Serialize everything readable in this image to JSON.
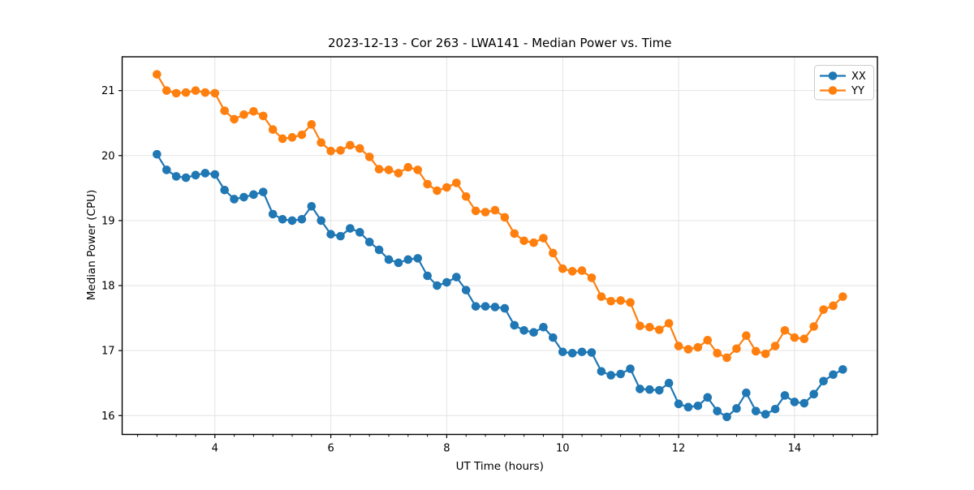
{
  "chart_data": {
    "type": "line",
    "title": "2023-12-13 - Cor 263 - LWA141 - Median Power vs. Time",
    "xlabel": "UT Time (hours)",
    "ylabel": "Median Power (CPU)",
    "xlim": [
      2.4,
      15.43
    ],
    "ylim": [
      15.71,
      21.52
    ],
    "x_major_ticks": [
      4,
      6,
      8,
      10,
      12,
      14
    ],
    "x_minor_step": 0.3333,
    "y_major_ticks": [
      16,
      17,
      18,
      19,
      20,
      21
    ],
    "grid": true,
    "legend_position": "upper right",
    "x": [
      3.0,
      3.167,
      3.333,
      3.5,
      3.667,
      3.833,
      4.0,
      4.167,
      4.333,
      4.5,
      4.667,
      4.833,
      5.0,
      5.167,
      5.333,
      5.5,
      5.667,
      5.833,
      6.0,
      6.167,
      6.333,
      6.5,
      6.667,
      6.833,
      7.0,
      7.167,
      7.333,
      7.5,
      7.667,
      7.833,
      8.0,
      8.167,
      8.333,
      8.5,
      8.667,
      8.833,
      9.0,
      9.167,
      9.333,
      9.5,
      9.667,
      9.833,
      10.0,
      10.167,
      10.333,
      10.5,
      10.667,
      10.833,
      11.0,
      11.167,
      11.333,
      11.5,
      11.667,
      11.833,
      12.0,
      12.167,
      12.333,
      12.5,
      12.667,
      12.833,
      13.0,
      13.167,
      13.333,
      13.5,
      13.667,
      13.833,
      14.0,
      14.167,
      14.333,
      14.5,
      14.667,
      14.833
    ],
    "series": [
      {
        "name": "XX",
        "color": "#1f77b4",
        "values": [
          20.02,
          19.78,
          19.68,
          19.66,
          19.7,
          19.73,
          19.71,
          19.47,
          19.33,
          19.36,
          19.4,
          19.44,
          19.1,
          19.02,
          19.0,
          19.02,
          19.22,
          19.0,
          18.79,
          18.76,
          18.88,
          18.82,
          18.67,
          18.55,
          18.4,
          18.35,
          18.4,
          18.42,
          18.15,
          18.0,
          18.05,
          18.13,
          17.93,
          17.68,
          17.68,
          17.67,
          17.65,
          17.39,
          17.31,
          17.28,
          17.36,
          17.2,
          16.98,
          16.96,
          16.98,
          16.97,
          16.68,
          16.62,
          16.64,
          16.72,
          16.41,
          16.4,
          16.39,
          16.5,
          16.18,
          16.13,
          16.15,
          16.28,
          16.07,
          15.98,
          16.11,
          16.35,
          16.07,
          16.02,
          16.1,
          16.31,
          16.21,
          16.19,
          16.33,
          16.53,
          16.63,
          16.71
        ]
      },
      {
        "name": "YY",
        "color": "#ff7f0e",
        "values": [
          21.25,
          21.0,
          20.96,
          20.97,
          21.0,
          20.97,
          20.96,
          20.69,
          20.56,
          20.63,
          20.68,
          20.61,
          20.4,
          20.26,
          20.28,
          20.32,
          20.48,
          20.2,
          20.07,
          20.08,
          20.16,
          20.11,
          19.98,
          19.79,
          19.78,
          19.73,
          19.82,
          19.78,
          19.56,
          19.46,
          19.51,
          19.58,
          19.37,
          19.15,
          19.13,
          19.16,
          19.05,
          18.8,
          18.69,
          18.66,
          18.73,
          18.5,
          18.26,
          18.22,
          18.23,
          18.12,
          17.83,
          17.76,
          17.77,
          17.74,
          17.38,
          17.36,
          17.32,
          17.42,
          17.07,
          17.02,
          17.05,
          17.16,
          16.96,
          16.89,
          17.03,
          17.23,
          16.99,
          16.95,
          17.07,
          17.31,
          17.2,
          17.18,
          17.37,
          17.63,
          17.69,
          17.83
        ]
      }
    ],
    "style": {
      "grid_color": "#e3e3e3",
      "spine_color": "#000000",
      "background": "#ffffff",
      "marker_radius": 5.3,
      "line_width": 2.2
    }
  }
}
